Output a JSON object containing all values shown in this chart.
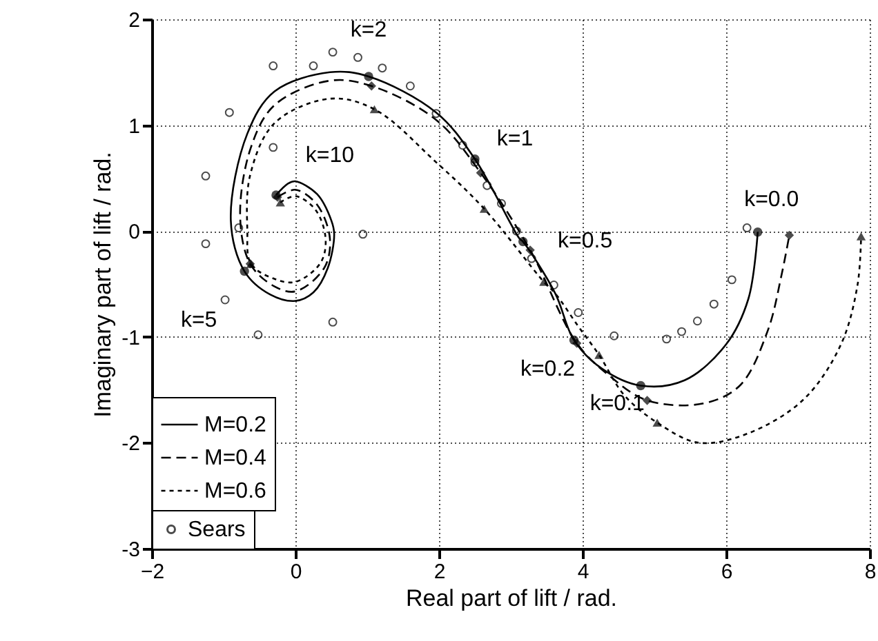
{
  "chart_data": {
    "type": "line",
    "xlabel": "Real part of lift / rad.",
    "ylabel": "Imaginary part of lift / rad.",
    "xlim": [
      -2,
      8
    ],
    "xticks": [
      -2,
      0,
      2,
      4,
      6,
      8
    ],
    "ylim": [
      -3,
      2
    ],
    "yticks": [
      {
        "value": -3,
        "label": "-3"
      },
      {
        "value": -2,
        "label": "-2"
      },
      {
        "value": -1,
        "label": "-1"
      },
      {
        "value": 0,
        "label": "0"
      },
      {
        "value": 1,
        "label": "1"
      },
      {
        "value": 2,
        "label": "2"
      }
    ],
    "grid": true,
    "legend": "bottom left",
    "series": [
      {
        "name": "M=0.2",
        "color": "#000000",
        "line_style": "solid",
        "x": [
          -0.27,
          -0.1,
          0,
          0.3,
          0.5,
          0.54,
          0.45,
          0.25,
          0,
          -0.35,
          -0.71,
          -0.9,
          -0.67,
          -0.29,
          0.48,
          1.02,
          1.96,
          2.5,
          3.12,
          3.17,
          3.62,
          3.88,
          4.27,
          4.81,
          5.42,
          6.0,
          6.31,
          6.44
        ],
        "values": [
          0.34,
          0.45,
          0.47,
          0.35,
          0.1,
          -0.03,
          -0.35,
          -0.58,
          -0.66,
          -0.6,
          -0.38,
          0.1,
          0.92,
          1.32,
          1.5,
          1.46,
          1.12,
          0.68,
          -0.07,
          -0.1,
          -0.59,
          -1.03,
          -1.3,
          -1.46,
          -1.41,
          -1.07,
          -0.64,
          -0.01
        ]
      },
      {
        "name": "M=0.4",
        "color": "#000000",
        "line_style": "dashed",
        "x": [
          -0.25,
          0,
          0.3,
          0.48,
          0.4,
          0,
          -0.3,
          -0.63,
          -0.77,
          -0.62,
          -0.29,
          0.48,
          1.06,
          1.96,
          2.58,
          3.27,
          3.92,
          4.38,
          4.9,
          5.67,
          6.19,
          6.58,
          6.77,
          6.88
        ],
        "values": [
          0.32,
          0.39,
          0.25,
          -0.07,
          -0.35,
          -0.57,
          -0.52,
          -0.31,
          0.14,
          0.79,
          1.19,
          1.42,
          1.37,
          1.05,
          0.55,
          -0.18,
          -1.06,
          -1.37,
          -1.6,
          -1.63,
          -1.46,
          -0.94,
          -0.42,
          -0.04
        ]
      },
      {
        "name": "M=0.6",
        "color": "#000000",
        "line_style": "dotted",
        "x": [
          -0.21,
          0,
          0.28,
          0.42,
          0.35,
          0,
          -0.3,
          -0.62,
          -0.67,
          -0.63,
          -0.29,
          0.48,
          1.1,
          1.96,
          2.63,
          3.46,
          3.62,
          3.94,
          4.23,
          4.58,
          5.04,
          5.62,
          6.31,
          7.08,
          7.6,
          7.83,
          7.88
        ],
        "values": [
          0.27,
          0.33,
          0.2,
          -0.07,
          -0.3,
          -0.48,
          -0.45,
          -0.31,
          0.01,
          0.53,
          1.02,
          1.25,
          1.15,
          0.65,
          0.21,
          -0.48,
          -0.59,
          -0.9,
          -1.17,
          -1.55,
          -1.81,
          -2.0,
          -1.91,
          -1.59,
          -1.07,
          -0.51,
          -0.05
        ]
      },
      {
        "type": "scatter",
        "marker": "circle",
        "color": "#000000",
        "x": [
          -0.27,
          -0.71,
          1.02,
          2.5,
          3.17,
          3.88,
          4.81,
          6.44
        ],
        "values": [
          0.34,
          -0.38,
          1.46,
          0.68,
          -0.1,
          -1.03,
          -1.46,
          -0.01
        ]
      },
      {
        "type": "scatter",
        "marker": "diamond",
        "color": "#000000",
        "x": [
          -0.25,
          -0.63,
          1.06,
          2.58,
          3.27,
          3.92,
          4.9,
          6.88
        ],
        "values": [
          0.32,
          -0.31,
          1.37,
          0.55,
          -0.18,
          -1.06,
          -1.6,
          -0.04
        ]
      },
      {
        "type": "scatter",
        "marker": "triangle",
        "color": "#000000",
        "x": [
          -0.21,
          -0.62,
          1.1,
          2.63,
          3.46,
          4.23,
          5.04,
          7.88
        ],
        "values": [
          0.27,
          -0.31,
          1.15,
          0.21,
          -0.48,
          -1.17,
          -1.81,
          -0.05
        ]
      },
      {
        "name": "Sears",
        "type": "scatter",
        "marker": "circle",
        "color": "#000000",
        "x": [
          0.25,
          0.52,
          0.87,
          1.21,
          1.6,
          1.96,
          2.33,
          2.5,
          2.67,
          2.87,
          3.08,
          3.29,
          3.6,
          3.94,
          4.44,
          5.17,
          5.38,
          5.6,
          5.83,
          6.08,
          6.29,
          -0.31,
          -0.92,
          -0.31,
          -1.25,
          -0.79,
          -1.25,
          0.94,
          -0.98,
          0.52,
          -0.52
        ],
        "values": [
          1.56,
          1.69,
          1.64,
          1.54,
          1.37,
          1.11,
          0.81,
          0.65,
          0.43,
          0.26,
          0.0,
          -0.26,
          -0.51,
          -0.77,
          -0.99,
          -1.02,
          -0.95,
          -0.85,
          -0.69,
          -0.46,
          0.03,
          1.56,
          1.12,
          0.79,
          0.52,
          0.03,
          -0.12,
          -0.03,
          -0.65,
          -0.86,
          -0.98
        ]
      }
    ],
    "annotations": [
      {
        "text": "k=2",
        "x": 1.02,
        "y": 1.46
      },
      {
        "text": "k=1",
        "x": 2.5,
        "y": 0.68
      },
      {
        "text": "k=10",
        "x": -0.27,
        "y": 0.34
      },
      {
        "text": "k=5",
        "x": -0.71,
        "y": -0.38
      },
      {
        "text": "k=0.5",
        "x": 3.17,
        "y": -0.1
      },
      {
        "text": "k=0.0",
        "x": 6.44,
        "y": -0.01
      },
      {
        "text": "k=0.2",
        "x": 3.88,
        "y": -1.03
      },
      {
        "text": "k=0.1",
        "x": 4.81,
        "y": -1.46
      }
    ]
  }
}
